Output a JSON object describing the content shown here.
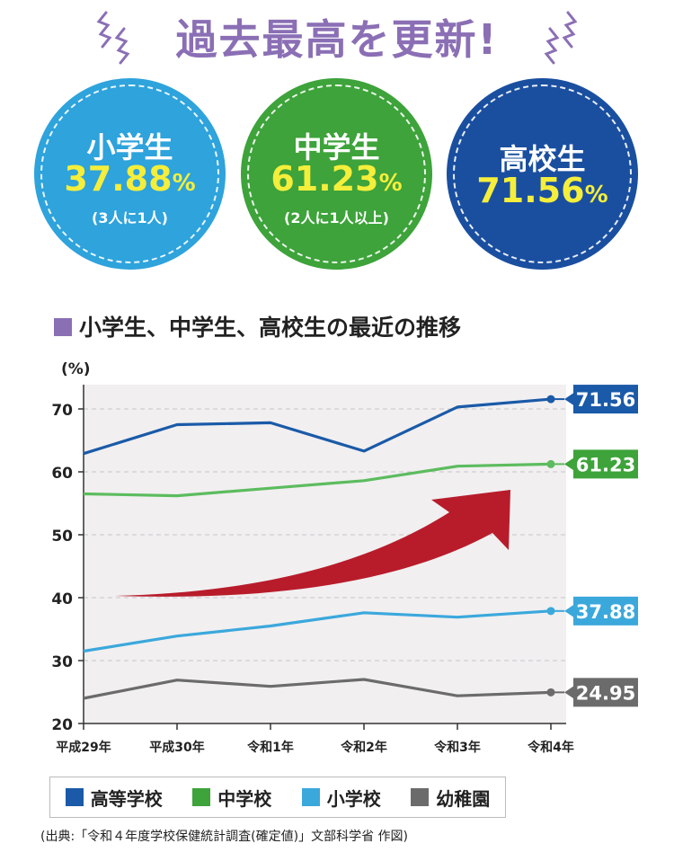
{
  "headline": "過去最高を更新!",
  "circles": [
    {
      "label": "小学生",
      "value": "37.88",
      "unit": "%",
      "sub": "(3人に1人)",
      "color": "#2ea3dc"
    },
    {
      "label": "中学生",
      "value": "61.23",
      "unit": "%",
      "sub": "(2人に1人以上)",
      "color": "#3da33a"
    },
    {
      "label": "高校生",
      "value": "71.56",
      "unit": "%",
      "sub": "",
      "color": "#1a4fa0"
    }
  ],
  "section_title": "小学生、中学生、高校生の最近の推移",
  "chart_data": {
    "type": "line",
    "ylabel": "(%)",
    "ylim": [
      20,
      72
    ],
    "yticks": [
      20,
      30,
      40,
      50,
      60,
      70
    ],
    "categories": [
      "平成29年",
      "平成30年",
      "令和1年",
      "令和2年",
      "令和3年",
      "令和4年"
    ],
    "series": [
      {
        "name": "高等学校",
        "color": "#1a5aa8",
        "values": [
          62.9,
          67.5,
          67.8,
          63.3,
          70.3,
          71.56
        ],
        "end_label": "71.56"
      },
      {
        "name": "中学校",
        "color": "#5cbc5e",
        "values": [
          56.5,
          56.2,
          57.4,
          58.6,
          60.9,
          61.23
        ],
        "end_label": "61.23"
      },
      {
        "name": "小学校",
        "color": "#3ba8dc",
        "values": [
          31.5,
          33.9,
          35.5,
          37.6,
          36.9,
          37.88
        ],
        "end_label": "37.88"
      },
      {
        "name": "幼稚園",
        "color": "#6b6b6b",
        "values": [
          24.0,
          26.9,
          25.9,
          27.0,
          24.4,
          24.95
        ],
        "end_label": "24.95"
      }
    ],
    "label_colors": [
      "#1a5aa8",
      "#3da33a",
      "#3ba8dc",
      "#6b6b6b"
    ],
    "grid": true
  },
  "legend": [
    {
      "label": "高等学校",
      "color": "#1a5aa8"
    },
    {
      "label": "中学校",
      "color": "#3da33a"
    },
    {
      "label": "小学校",
      "color": "#3ba8dc"
    },
    {
      "label": "幼稚園",
      "color": "#6b6b6b"
    }
  ],
  "source": "(出典:「令和４年度学校保健統計調査(確定値)」文部科学省 作図)"
}
